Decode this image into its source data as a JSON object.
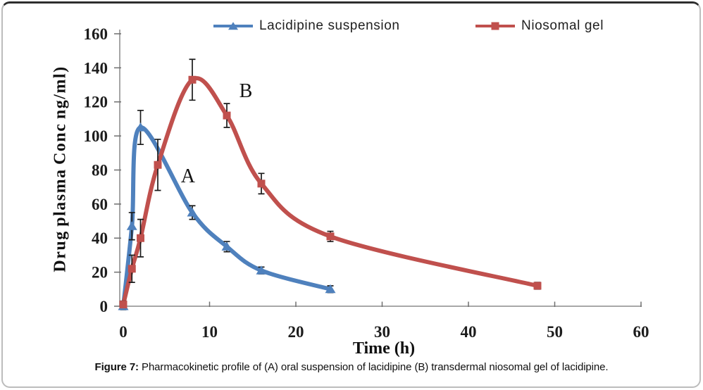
{
  "figure": {
    "caption_prefix": "Figure 7:",
    "caption_rest": " Pharmacokinetic profile of (A) oral suspension of lacidipine (B) transdermal niosomal gel of lacidipine."
  },
  "chart_data": {
    "type": "line",
    "title": "",
    "xlabel": "Time (h)",
    "ylabel": "Drug plasma Conc ng/ml)",
    "xlim": [
      0,
      60
    ],
    "ylim": [
      0,
      160
    ],
    "xticks": [
      0,
      10,
      20,
      30,
      40,
      50,
      60
    ],
    "yticks": [
      0,
      20,
      40,
      60,
      80,
      100,
      120,
      140,
      160
    ],
    "grid": false,
    "legend_position": "top-center",
    "line_style": "smooth",
    "error_bars": true,
    "series": [
      {
        "name": "Lacidipine suspension",
        "color": "#4F81BD",
        "marker": "triangle",
        "x": [
          0,
          1,
          2,
          8,
          12,
          16,
          24
        ],
        "y": [
          0,
          47,
          105,
          55,
          35,
          21,
          10
        ],
        "yerr": [
          2,
          8,
          10,
          4,
          3,
          2,
          2
        ]
      },
      {
        "name": "Niosomal gel",
        "color": "#C0504D",
        "marker": "square",
        "x": [
          0,
          1,
          2,
          4,
          8,
          12,
          16,
          24,
          48
        ],
        "y": [
          1,
          22,
          40,
          83,
          133,
          112,
          72,
          41,
          12
        ],
        "yerr": [
          2,
          8,
          11,
          15,
          12,
          7,
          6,
          3,
          2
        ]
      }
    ],
    "annotations": [
      {
        "text": "A",
        "x": 7.5,
        "y": 76
      },
      {
        "text": "B",
        "x": 14.2,
        "y": 126
      }
    ],
    "axis_color": "#9c9c9c",
    "tick_color": "#6f6f6f",
    "error_bar_color": "#1b1b1b"
  }
}
